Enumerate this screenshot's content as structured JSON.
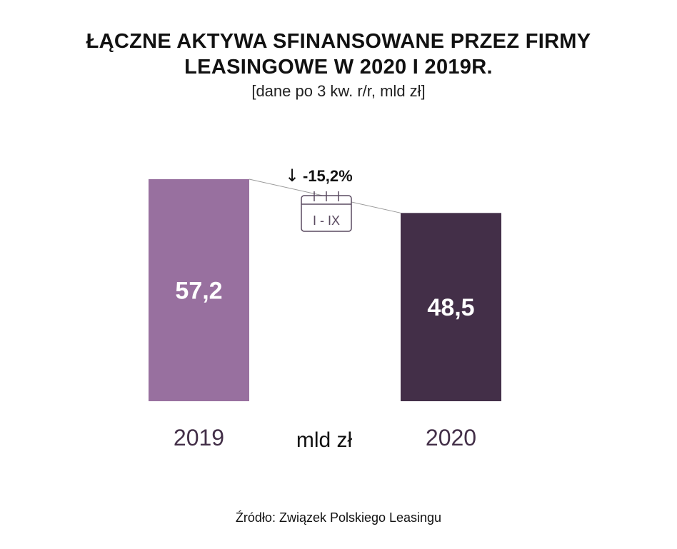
{
  "title_lines": [
    "ŁĄCZNE AKTYWA SFINANSOWANE PRZEZ FIRMY",
    "LEASINGOWE W 2020 I 2019R."
  ],
  "subtitle": "[dane po 3 kw. r/r, mld zł]",
  "unit_label": "mld zł",
  "change_arrow": "↓",
  "change_label": "-15,2%",
  "period_label": "I - IX",
  "source": "Źródło: Związek Polskiego Leasingu",
  "colors": {
    "bar_2019": "#98709f",
    "bar_2020": "#432f48",
    "axis_text": "#432f48"
  },
  "icons": [
    "down-arrow-icon",
    "calendar-icon"
  ],
  "chart_data": {
    "type": "bar",
    "categories": [
      "2019",
      "2020"
    ],
    "values": [
      57.2,
      48.5
    ],
    "value_labels": [
      "57,2",
      "48,5"
    ],
    "ylabel": "mld zł",
    "ylim": [
      0,
      57.2
    ],
    "grid": false,
    "legend": "none"
  }
}
